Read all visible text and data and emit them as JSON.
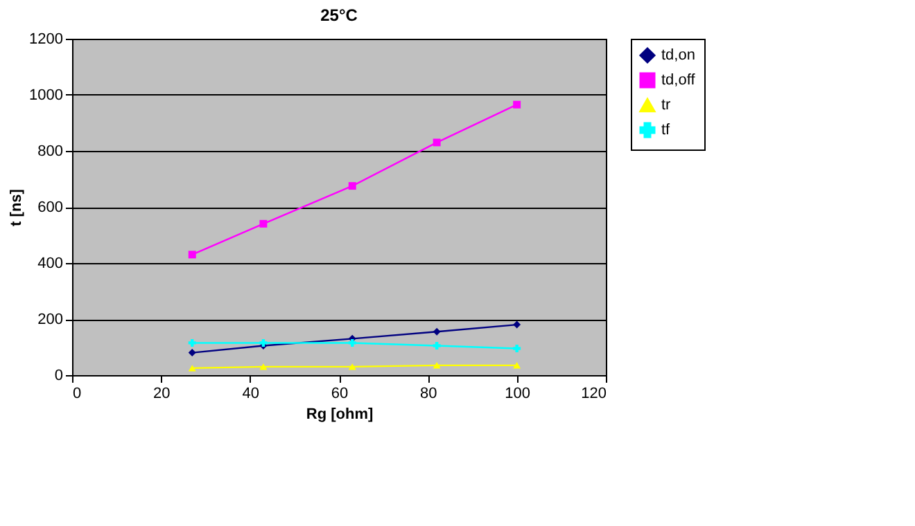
{
  "chart_data": {
    "type": "line",
    "title": "25°C",
    "xlabel": "Rg [ohm]",
    "ylabel": "t [ns]",
    "x": [
      27,
      43,
      63,
      82,
      100
    ],
    "series": [
      {
        "name": "td,on",
        "color": "#000080",
        "marker": "diamond",
        "values": [
          80,
          105,
          130,
          155,
          180
        ]
      },
      {
        "name": "td,off",
        "color": "#ff00ff",
        "marker": "square",
        "values": [
          430,
          540,
          675,
          830,
          965
        ]
      },
      {
        "name": "tr",
        "color": "#ffff00",
        "marker": "triangle",
        "values": [
          25,
          30,
          30,
          35,
          35
        ]
      },
      {
        "name": "tf",
        "color": "#00ffff",
        "marker": "cross",
        "values": [
          115,
          115,
          115,
          105,
          95
        ]
      }
    ],
    "xlim": [
      0,
      120
    ],
    "xticks": [
      0,
      20,
      40,
      60,
      80,
      100,
      120
    ],
    "ylim": [
      0,
      1200
    ],
    "yticks": [
      0,
      200,
      400,
      600,
      800,
      1000,
      1200
    ],
    "grid": "y",
    "legend": "right",
    "line_style": "solid"
  }
}
